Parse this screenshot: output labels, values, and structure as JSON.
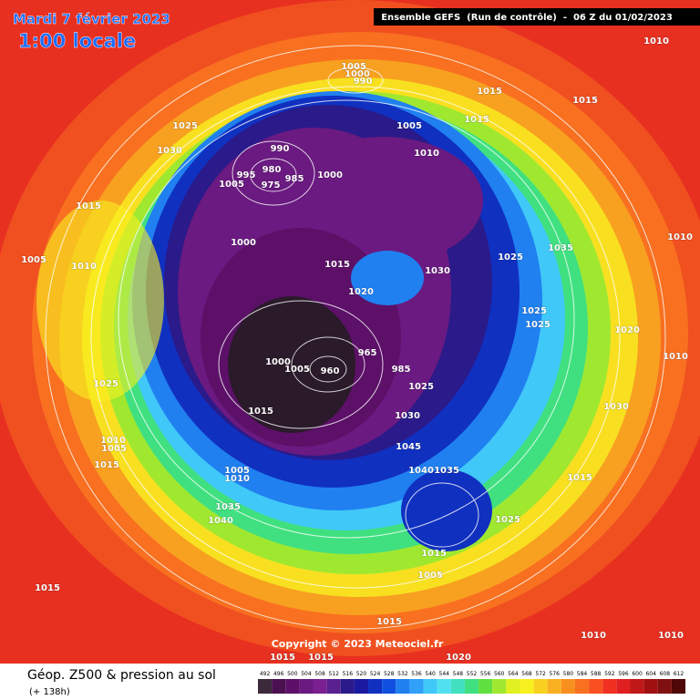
{
  "header": {
    "date": "Mardi 7 février 2023",
    "time": "1:00 locale",
    "run": "Ensemble GEFS  (Run de contrôle)  -  06 Z du 01/02/2023"
  },
  "footer": {
    "title": "Géop. Z500 & pression au sol",
    "lead": "(+ 138h)",
    "copyright": "Copyright © 2023 Meteociel.fr"
  },
  "legend": {
    "levels": [
      492,
      496,
      500,
      504,
      508,
      512,
      516,
      520,
      524,
      528,
      532,
      536,
      540,
      544,
      548,
      552,
      556,
      560,
      564,
      568,
      572,
      576,
      580,
      584,
      588,
      592,
      596,
      600,
      604,
      608,
      612
    ],
    "colors": [
      "#3a2a3a",
      "#4b1050",
      "#5c1068",
      "#6a1a80",
      "#7a2090",
      "#5a2090",
      "#2a1a8a",
      "#1a1aa0",
      "#1030c0",
      "#1050e0",
      "#2080f0",
      "#30a0f8",
      "#40c8f8",
      "#50e0f0",
      "#40e0c0",
      "#40e080",
      "#60e040",
      "#a0e830",
      "#e0f020",
      "#f8f020",
      "#f8d020",
      "#f8b020",
      "#f89020",
      "#f87020",
      "#f85020",
      "#f03020",
      "#e02020",
      "#c01818",
      "#a01010",
      "#801010",
      "#500808"
    ]
  },
  "isobar_labels": [
    "1005",
    "1000",
    "990",
    "1015",
    "1015",
    "1015",
    "1010",
    "1025",
    "1030",
    "1005",
    "1010",
    "990",
    "995",
    "980",
    "985",
    "975",
    "1005",
    "1000",
    "1015",
    "1005",
    "1010",
    "1000",
    "1015",
    "1030",
    "1025",
    "1035",
    "1010",
    "1020",
    "1025",
    "1025",
    "1020",
    "1010",
    "1000",
    "1005",
    "960",
    "965",
    "985",
    "1025",
    "1025",
    "1015",
    "1030",
    "1030",
    "1010",
    "1005",
    "1045",
    "1015",
    "1040",
    "1035",
    "1005",
    "1010",
    "1015",
    "1035",
    "1040",
    "1025",
    "1015",
    "1005",
    "1015",
    "1015",
    "1010",
    "1010",
    "1015",
    "1015",
    "1020"
  ]
}
